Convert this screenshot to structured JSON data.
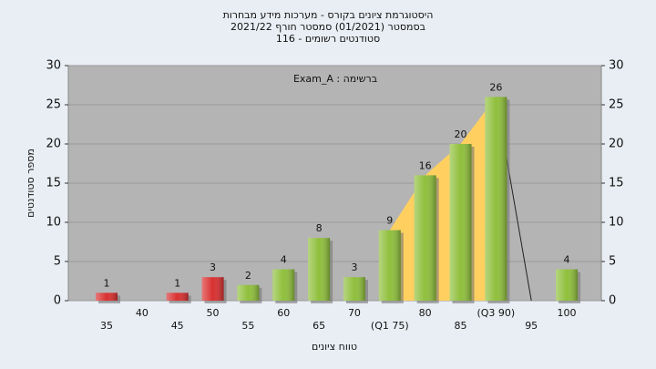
{
  "chart_data": {
    "type": "bar",
    "title_lines": [
      "היסטוגרמת ציונים בקורס - מערכות מידע מבחרות",
      "בסמסטר  (01/2021)  סמסטר חורף 2021/22",
      "סטודנטים רשומים - 116"
    ],
    "annotation": "Exam_A : ברשימה",
    "xlabel": "טווח ציונים",
    "ylabel": "מספר סטודנטים",
    "categories": [
      "35",
      "40",
      "45",
      "50",
      "55",
      "60",
      "65",
      "70",
      "(Q1 75)",
      "80",
      "85",
      "(Q3 90)",
      "95",
      "100"
    ],
    "values": [
      1,
      null,
      1,
      3,
      2,
      4,
      8,
      3,
      9,
      16,
      20,
      26,
      null,
      4
    ],
    "colors": [
      "#d93030",
      "#8fbf3c",
      "#d93030",
      "#d93030",
      "#8fbf3c",
      "#8fbf3c",
      "#8fbf3c",
      "#8fbf3c",
      "#8fbf3c",
      "#8fbf3c",
      "#8fbf3c",
      "#8fbf3c",
      "#8fbf3c",
      "#8fbf3c"
    ],
    "iqr_color": "#ffd060",
    "ylim": [
      0,
      30
    ],
    "yticks": [
      0,
      5,
      10,
      15,
      20,
      25,
      30
    ],
    "y2lim": [
      0,
      30
    ],
    "y2ticks": [
      0,
      5,
      10,
      15,
      20,
      25,
      30
    ],
    "grid": true
  }
}
